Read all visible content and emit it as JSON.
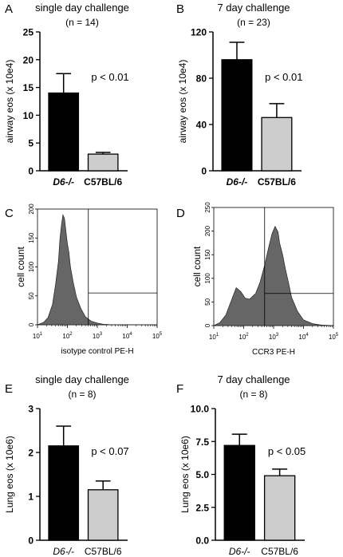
{
  "chart_data": [
    {
      "panel": "A",
      "type": "bar",
      "title": "single day challenge",
      "subtitle": "(n = 14)",
      "ylabel": "airway eos (x 10e4)",
      "ylim": [
        0,
        25
      ],
      "yticks": [
        "0",
        "5",
        "10",
        "15",
        "20",
        "25"
      ],
      "categories": [
        "D6-/-",
        "C57BL/6"
      ],
      "category_styles": [
        "bold-italic",
        "bold"
      ],
      "values": [
        14.0,
        3.0
      ],
      "errors": [
        3.5,
        0.3
      ],
      "colors": [
        "#000000",
        "#cccccc"
      ],
      "annotation": "p < 0.01"
    },
    {
      "panel": "B",
      "type": "bar",
      "title": "7 day challenge",
      "subtitle": "(n = 23)",
      "ylabel": "airway eos (x 10e4)",
      "ylim": [
        0,
        120
      ],
      "yticks": [
        "0",
        "40",
        "80",
        "120"
      ],
      "categories": [
        "D6-/-",
        "C57BL/6"
      ],
      "category_styles": [
        "bold-italic",
        "bold"
      ],
      "values": [
        96,
        46
      ],
      "errors": [
        15,
        12
      ],
      "colors": [
        "#000000",
        "#cccccc"
      ],
      "annotation": "p < 0.01"
    },
    {
      "panel": "C",
      "type": "area",
      "xlabel": "isotype control PE-H",
      "ylabel": "cell count",
      "xscale": "log",
      "xlim": [
        1,
        5
      ],
      "ylim": [
        0,
        200
      ],
      "xtick_powers": [
        1,
        2,
        3,
        4,
        5
      ],
      "yticks": [
        "0",
        "50",
        "100",
        "150",
        "200"
      ],
      "gate_x": 2.7,
      "gate_y": 55,
      "color": "#666666",
      "x": [
        1.0,
        1.2,
        1.35,
        1.5,
        1.6,
        1.7,
        1.75,
        1.8,
        1.85,
        1.9,
        1.95,
        2.0,
        2.05,
        2.1,
        2.2,
        2.3,
        2.45,
        2.6,
        2.8,
        3.0,
        3.2,
        3.5,
        4.0,
        5.0
      ],
      "y": [
        0,
        4,
        12,
        35,
        68,
        110,
        148,
        172,
        190,
        184,
        162,
        140,
        125,
        100,
        72,
        48,
        28,
        14,
        6,
        3,
        1,
        0,
        0,
        0
      ]
    },
    {
      "panel": "D",
      "type": "area",
      "xlabel": "CCR3 PE-H",
      "ylabel": "cell count",
      "xscale": "log",
      "xlim": [
        1,
        5
      ],
      "ylim": [
        0,
        250
      ],
      "xtick_powers": [
        1,
        2,
        3,
        4,
        5
      ],
      "yticks": [
        "0",
        "50",
        "100",
        "150",
        "200",
        "250"
      ],
      "gate_x": 2.7,
      "gate_y": 68,
      "color": "#666666",
      "x": [
        1.0,
        1.2,
        1.4,
        1.6,
        1.75,
        1.9,
        2.05,
        2.2,
        2.4,
        2.55,
        2.7,
        2.85,
        2.95,
        3.05,
        3.15,
        3.2,
        3.3,
        3.4,
        3.5,
        3.6,
        3.8,
        4.0,
        4.3,
        4.6,
        5.0
      ],
      "y": [
        0,
        6,
        22,
        55,
        80,
        72,
        58,
        56,
        68,
        92,
        128,
        170,
        195,
        210,
        198,
        175,
        150,
        118,
        90,
        60,
        30,
        12,
        4,
        1,
        0
      ]
    },
    {
      "panel": "E",
      "type": "bar",
      "title": "single day challenge",
      "subtitle": "(n = 8)",
      "ylabel": "Lung eos (x 10e6)",
      "ylim": [
        0,
        3
      ],
      "yticks": [
        "0",
        "1",
        "2",
        "3"
      ],
      "categories": [
        "D6-/-",
        "C57BL/6"
      ],
      "category_styles": [
        "italic",
        "normal"
      ],
      "values": [
        2.15,
        1.15
      ],
      "errors": [
        0.45,
        0.2
      ],
      "colors": [
        "#000000",
        "#cccccc"
      ],
      "annotation": "p < 0.07"
    },
    {
      "panel": "F",
      "type": "bar",
      "title": "7 day challenge",
      "subtitle": "(n = 8)",
      "ylabel": "Lung eos (x 10e6)",
      "ylim": [
        0,
        10
      ],
      "yticks": [
        "0.0",
        "2.5",
        "5.0",
        "7.5",
        "10.0"
      ],
      "categories": [
        "D6-/-",
        "C57BL/6"
      ],
      "category_styles": [
        "italic",
        "normal"
      ],
      "values": [
        7.2,
        4.9
      ],
      "errors": [
        0.85,
        0.5
      ],
      "colors": [
        "#000000",
        "#cccccc"
      ],
      "annotation": "p < 0.05"
    }
  ]
}
